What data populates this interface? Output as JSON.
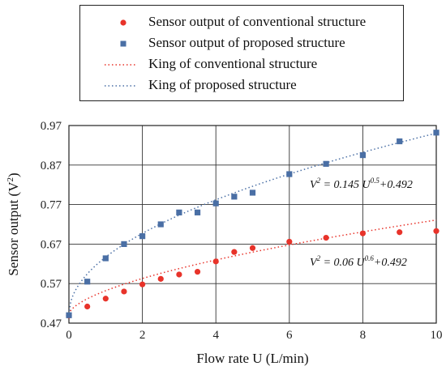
{
  "chart_data": {
    "type": "scatter",
    "xlabel": "Flow rate U (L/min)",
    "ylabel": "Sensor output (V²)",
    "xlim": [
      0,
      10
    ],
    "ylim": [
      0.47,
      0.97
    ],
    "xticks": [
      "0",
      "2",
      "4",
      "6",
      "8",
      "10"
    ],
    "yticks": [
      "0.47",
      "0.57",
      "0.67",
      "0.77",
      "0.87",
      "0.97"
    ],
    "grid": true,
    "legend_placement": "top",
    "series": [
      {
        "name": "Sensor output of conventional structure",
        "kind": "scatter",
        "marker": "circle",
        "color": "#e8332a",
        "x": [
          0,
          0.5,
          1,
          1.5,
          2,
          2.5,
          3,
          3.5,
          4,
          4.5,
          5,
          6,
          7,
          8,
          9,
          10
        ],
        "y": [
          0.489,
          0.512,
          0.532,
          0.55,
          0.568,
          0.582,
          0.593,
          0.6,
          0.626,
          0.65,
          0.66,
          0.676,
          0.686,
          0.697,
          0.7,
          0.703
        ]
      },
      {
        "name": "Sensor output of proposed structure",
        "kind": "scatter",
        "marker": "square",
        "color": "#4a6fa5",
        "x": [
          0,
          0.5,
          1,
          1.5,
          2,
          2.5,
          3,
          3.5,
          4,
          4.5,
          5,
          6,
          7,
          8,
          9,
          10
        ],
        "y": [
          0.49,
          0.575,
          0.634,
          0.67,
          0.69,
          0.72,
          0.75,
          0.75,
          0.773,
          0.79,
          0.8,
          0.847,
          0.873,
          0.895,
          0.93,
          0.952
        ]
      },
      {
        "name": "King of conventional structure",
        "kind": "fit",
        "style": "dotted",
        "color": "#e8332a",
        "equation": {
          "lhs": "V",
          "lhs_exp": "2",
          "mid": " = 0.06 U",
          "exp": "0.6",
          "rhs": "+0.492"
        },
        "coef": 0.06,
        "power": 0.6,
        "intercept": 0.492
      },
      {
        "name": "King of proposed structure",
        "kind": "fit",
        "style": "dotted",
        "color": "#4a6fa5",
        "equation": {
          "lhs": "V",
          "lhs_exp": "2",
          "mid": " = 0.145 U",
          "exp": "0.5",
          "rhs": "+0.492"
        },
        "coef": 0.145,
        "power": 0.5,
        "intercept": 0.492
      }
    ]
  }
}
